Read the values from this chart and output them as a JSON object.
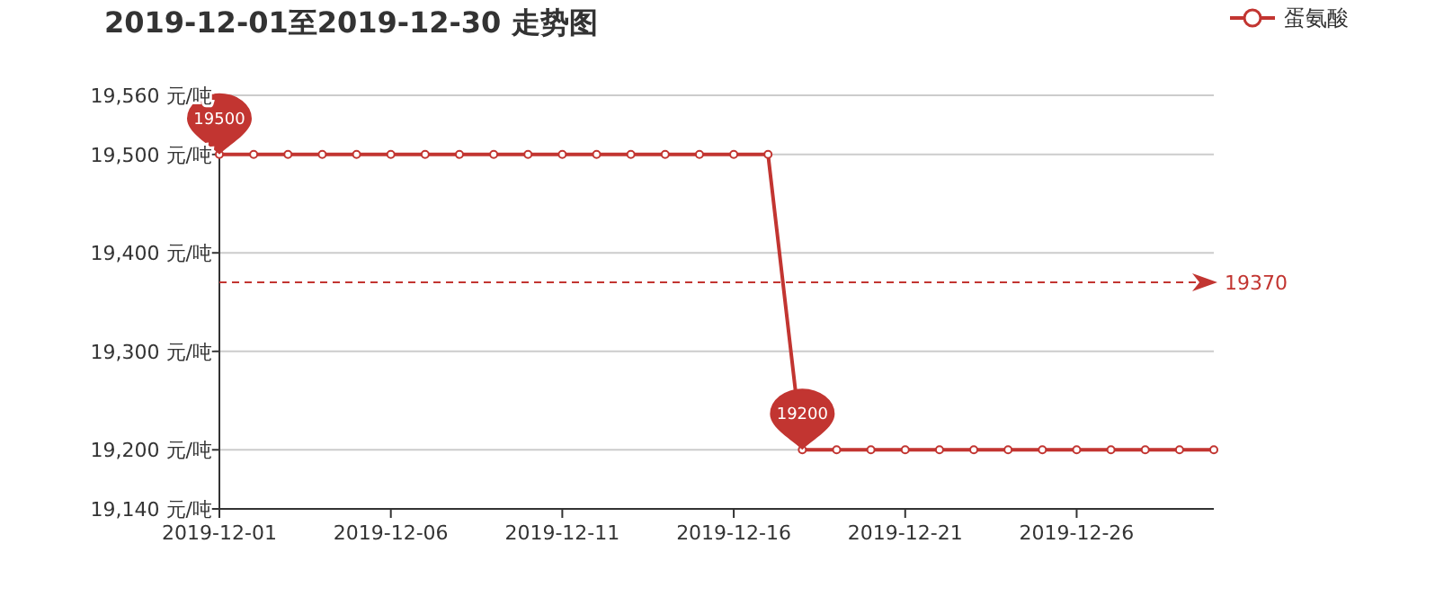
{
  "chart_data": {
    "type": "line",
    "title": "2019-12-01至2019-12-30 走势图",
    "x": [
      "2019-12-01",
      "2019-12-02",
      "2019-12-03",
      "2019-12-04",
      "2019-12-05",
      "2019-12-06",
      "2019-12-07",
      "2019-12-08",
      "2019-12-09",
      "2019-12-10",
      "2019-12-11",
      "2019-12-12",
      "2019-12-13",
      "2019-12-14",
      "2019-12-15",
      "2019-12-16",
      "2019-12-17",
      "2019-12-18",
      "2019-12-19",
      "2019-12-20",
      "2019-12-21",
      "2019-12-22",
      "2019-12-23",
      "2019-12-24",
      "2019-12-25",
      "2019-12-26",
      "2019-12-27",
      "2019-12-28",
      "2019-12-29",
      "2019-12-30"
    ],
    "series": [
      {
        "name": "蛋氨酸",
        "color": "#c23531",
        "values": [
          19500,
          19500,
          19500,
          19500,
          19500,
          19500,
          19500,
          19500,
          19500,
          19500,
          19500,
          19500,
          19500,
          19500,
          19500,
          19500,
          19500,
          19200,
          19200,
          19200,
          19200,
          19200,
          19200,
          19200,
          19200,
          19200,
          19200,
          19200,
          19200,
          19200
        ]
      }
    ],
    "xlim": [
      "2019-12-01",
      "2019-12-30"
    ],
    "xticks": [
      "2019-12-01",
      "2019-12-06",
      "2019-12-11",
      "2019-12-16",
      "2019-12-21",
      "2019-12-26"
    ],
    "ylim": [
      19140,
      19560
    ],
    "yticks": [
      {
        "value": 19140,
        "label": "19,140 元/吨"
      },
      {
        "value": 19200,
        "label": "19,200 元/吨"
      },
      {
        "value": 19300,
        "label": "19,300 元/吨"
      },
      {
        "value": 19400,
        "label": "19,400 元/吨"
      },
      {
        "value": 19500,
        "label": "19,500 元/吨"
      },
      {
        "value": 19560,
        "label": "19,560 元/吨"
      }
    ],
    "ref_lines": [
      {
        "axis": "y",
        "value": 19370,
        "label": "19370",
        "color": "#c23531",
        "line_style": "dashed"
      }
    ],
    "annotations": [
      {
        "text": "19500",
        "x": "2019-12-01",
        "y": 19500
      },
      {
        "text": "19200",
        "x": "2019-12-18",
        "y": 19200
      }
    ],
    "grid": "y",
    "legend": "top right",
    "marker": "circle",
    "line_style": "solid"
  }
}
